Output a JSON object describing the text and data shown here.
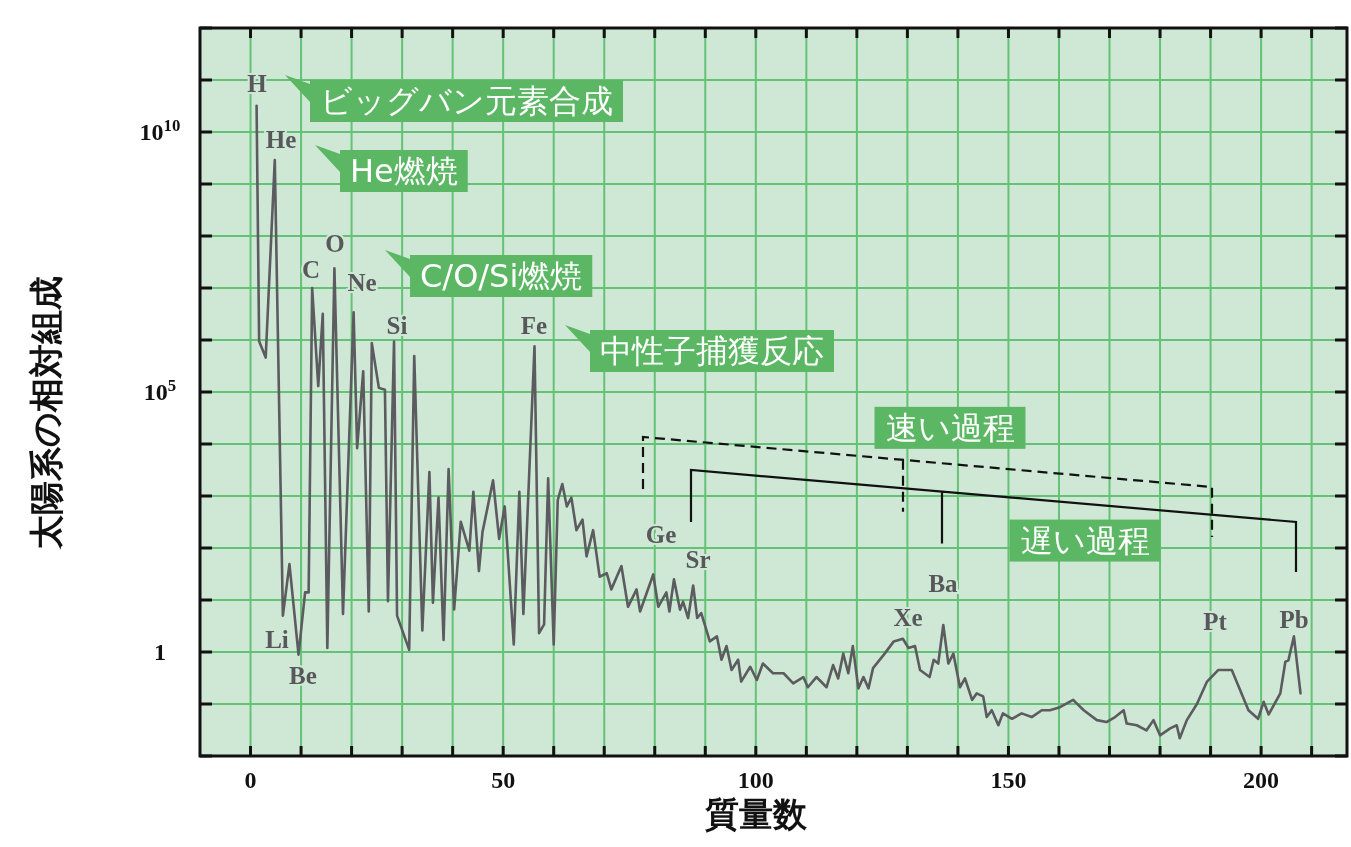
{
  "chart_data": {
    "type": "line",
    "xlabel": "質量数",
    "ylabel": "太陽系の相対組成",
    "log": "y",
    "grid": true,
    "xlim": [
      -10,
      217
    ],
    "ylim": [
      0.01,
      1000000000000.0
    ],
    "xticks": [
      0,
      {
        "value": 10,
        "label": null
      },
      {
        "value": 20,
        "label": null
      },
      {
        "value": 30,
        "label": null
      },
      {
        "value": 40,
        "label": null
      },
      50,
      {
        "value": 60,
        "label": null
      },
      {
        "value": 70,
        "label": null
      },
      {
        "value": 80,
        "label": null
      },
      {
        "value": 90,
        "label": null
      },
      100,
      {
        "value": 110,
        "label": null
      },
      {
        "value": 120,
        "label": null
      },
      {
        "value": 130,
        "label": null
      },
      {
        "value": 140,
        "label": null
      },
      150,
      {
        "value": 160,
        "label": null
      },
      {
        "value": 170,
        "label": null
      },
      {
        "value": 180,
        "label": null
      },
      {
        "value": 190,
        "label": null
      },
      200,
      {
        "value": 210,
        "label": null
      }
    ],
    "yticks": [
      {
        "value": 0.01,
        "label": null
      },
      {
        "value": 0.1,
        "label": null
      },
      1,
      {
        "value": 10,
        "label": null
      },
      {
        "value": 100,
        "label": null
      },
      {
        "value": 1000,
        "label": null
      },
      {
        "value": 10000,
        "label": null
      },
      {
        "value": 100000,
        "label": "10$^{5}$"
      },
      {
        "value": 1000000,
        "label": null
      },
      {
        "value": 10000000,
        "label": null
      },
      {
        "value": 100000000,
        "label": null
      },
      {
        "value": 1000000000,
        "label": null
      },
      {
        "value": 10000000000,
        "label": "10$^{10}$"
      },
      {
        "value": 100000000000,
        "label": null
      },
      {
        "value": 1000000000000,
        "label": null
      }
    ],
    "series": [
      {
        "color": "#5b5b60",
        "x": [
          1.2,
          1.7,
          3.0,
          4.8,
          6.4,
          7.7,
          9.5,
          10.8,
          11.5,
          12.2,
          13.4,
          14.3,
          15.2,
          16.6,
          18.3,
          20.4,
          21.1,
          22.3,
          23.4,
          24.0,
          25.4,
          26.6,
          27.2,
          28.4,
          29.0,
          31.4,
          32.4,
          34.0,
          35.4,
          36.1,
          37.2,
          38.2,
          39.2,
          40.3,
          41.6,
          43.3,
          44.1,
          45.2,
          45.9,
          48.0,
          49.2,
          50.3,
          52.1,
          53.2,
          54.0,
          56.2,
          57.1,
          58.1,
          58.9,
          60.0,
          60.8,
          61.7,
          62.6,
          63.5,
          64.5,
          65.7,
          66.5,
          67.8,
          69.1,
          70.5,
          71.4,
          73.4,
          74.7,
          76.4,
          77.1,
          79.7,
          80.7,
          82.3,
          82.9,
          83.8,
          85.0,
          85.6,
          86.6,
          87.6,
          88.4,
          89.2,
          90.9,
          92.3,
          93.2,
          94.2,
          95.2,
          96.5,
          97.1,
          98.9,
          100.2,
          101.4,
          103.4,
          105.5,
          107.4,
          109.4,
          110.3,
          112.0,
          114.0,
          115.3,
          116.3,
          117.3,
          118.3,
          119.2,
          120.3,
          121.3,
          122.3,
          123.2,
          125.5,
          127.3,
          129.1,
          130.2,
          131.5,
          132.5,
          134.4,
          135.2,
          136.1,
          137.1,
          138.1,
          139.1,
          140.4,
          141.4,
          142.8,
          143.7,
          145.0,
          145.7,
          146.7,
          148.0,
          148.9,
          150.7,
          152.6,
          154.6,
          156.6,
          158.2,
          160.2,
          162.8,
          164.9,
          167.5,
          169.4,
          171.1,
          172.8,
          173.4,
          175.4,
          177.3,
          178.7,
          180.0,
          182.0,
          183.3,
          183.9,
          185.3,
          187.3,
          189.3,
          191.5,
          194.2,
          197.5,
          199.4,
          200.5,
          201.5,
          203.8,
          204.8,
          205.4,
          206.5,
          207.8
        ],
        "values": [
          32000000000.0,
          950000.0,
          460000.0,
          2900000000.0,
          5,
          49,
          0.89,
          14,
          14,
          10000000.0,
          130000.0,
          3200000.0,
          1.2,
          24000000.0,
          5.4,
          3400000.0,
          8300,
          250000.0,
          6,
          870000.0,
          120000.0,
          110000.0,
          9.5,
          930000.0,
          5,
          1.1,
          490000.0,
          2.6,
          2900,
          8.9,
          930,
          1.7,
          3300,
          6.6,
          320,
          89,
          1200,
          36,
          200,
          2000,
          150,
          630,
          1.4,
          1200,
          5.4,
          760000.0,
          2.3,
          3.4,
          2200,
          1.4,
          830,
          1700,
          630,
          930,
          220,
          350,
          69,
          220,
          28,
          33,
          16,
          45,
          7.4,
          16,
          6,
          31,
          7.4,
          14,
          6,
          25,
          6.5,
          9.3,
          4.5,
          19,
          4.5,
          5.6,
          1.6,
          2,
          0.71,
          1.3,
          0.45,
          0.71,
          0.27,
          0.52,
          0.29,
          0.6,
          0.39,
          0.39,
          0.25,
          0.33,
          0.21,
          0.33,
          0.21,
          0.56,
          0.31,
          0.93,
          0.39,
          1.3,
          0.2,
          0.33,
          0.2,
          0.49,
          0.93,
          1.6,
          1.8,
          1.2,
          1.3,
          0.45,
          0.33,
          0.71,
          0.6,
          3.3,
          0.6,
          0.93,
          0.21,
          0.31,
          0.12,
          0.16,
          0.14,
          0.056,
          0.076,
          0.039,
          0.066,
          0.052,
          0.066,
          0.056,
          0.076,
          0.076,
          0.087,
          0.12,
          0.076,
          0.049,
          0.045,
          0.056,
          0.076,
          0.042,
          0.039,
          0.031,
          0.049,
          0.025,
          0.034,
          0.039,
          0.022,
          0.049,
          0.1,
          0.27,
          0.45,
          0.45,
          0.076,
          0.052,
          0.11,
          0.063,
          0.16,
          0.65,
          0.69,
          2,
          0.16
        ]
      }
    ],
    "annotations": [
      "H",
      "He",
      "Li",
      "Be",
      "C",
      "O",
      "Ne",
      "Si",
      "Fe",
      "Ge",
      "Sr",
      "Xe",
      "Ba",
      "Pt",
      "Pb",
      "ビッグバン元素合成",
      "He燃焼",
      "C/O/Si燃焼",
      "中性子捕獲反応",
      "速い過程",
      "遅い過程"
    ]
  }
}
